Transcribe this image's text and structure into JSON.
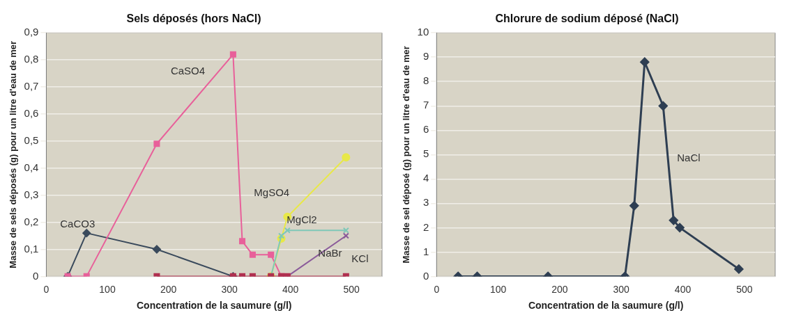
{
  "chart_data": [
    {
      "type": "line",
      "title": "Sels déposés (hors NaCl)",
      "xlabel": "Concentration de la saumure (g/l)",
      "ylabel": "Masse de sels déposés (g) pour un litre d'eau de mer",
      "x": [
        35,
        66,
        181,
        306,
        321,
        338,
        368,
        385,
        395,
        491
      ],
      "series": [
        {
          "name": "CaCO3",
          "color": "#3a4a5c",
          "marker": "diamond",
          "values": [
            0,
            0.16,
            0.1,
            0,
            null,
            null,
            null,
            null,
            null,
            null
          ]
        },
        {
          "name": "CaSO4",
          "color": "#e8609a",
          "marker": "square",
          "values": [
            0,
            0,
            0.49,
            0.82,
            0.13,
            0.08,
            0.08,
            0,
            null,
            null
          ]
        },
        {
          "name": "MgSO4",
          "color": "#e8e848",
          "marker": "circle",
          "values": [
            null,
            null,
            null,
            null,
            null,
            null,
            0,
            0.14,
            0.22,
            0.44
          ]
        },
        {
          "name": "MgCl2",
          "color": "#7fc8b8",
          "marker": "cross",
          "values": [
            null,
            null,
            null,
            null,
            null,
            null,
            0,
            0.15,
            0.17,
            0.17
          ]
        },
        {
          "name": "NaBr",
          "color": "#8a5a9a",
          "marker": "cross",
          "values": [
            null,
            null,
            null,
            null,
            null,
            null,
            null,
            null,
            0,
            0.15
          ]
        },
        {
          "name": "KCl",
          "color": "#b03050",
          "marker": "square",
          "values": [
            null,
            null,
            0,
            0,
            0,
            0,
            0,
            0,
            0,
            0
          ]
        }
      ],
      "xlim": [
        0,
        550
      ],
      "xticks": [
        0,
        100,
        200,
        300,
        400,
        500
      ],
      "ylim": [
        0,
        0.9
      ],
      "yticks": [
        0,
        {
          "value": 0.1,
          "label": "0,1"
        },
        {
          "value": 0.2,
          "label": "0,2"
        },
        {
          "value": 0.3,
          "label": "0,3"
        },
        {
          "value": 0.4,
          "label": "0,4"
        },
        {
          "value": 0.5,
          "label": "0,5"
        },
        {
          "value": 0.6,
          "label": "0,6"
        },
        {
          "value": 0.7,
          "label": "0,7"
        },
        {
          "value": 0.8,
          "label": "0,8"
        },
        {
          "value": 0.9,
          "label": "0,9"
        }
      ],
      "grid": "y"
    },
    {
      "type": "line",
      "title": "Chlorure de sodium déposé (NaCl)",
      "xlabel": "Concentration de la saumure (g/l)",
      "ylabel": "Masse de sel déposé (g) pour un litre d'eau de mer",
      "x": [
        35,
        66,
        181,
        306,
        321,
        338,
        368,
        385,
        395,
        491
      ],
      "series": [
        {
          "name": "NaCl",
          "color": "#2e3e52",
          "marker": "diamond",
          "values": [
            0,
            0,
            0,
            0,
            2.9,
            8.8,
            7,
            2.3,
            2,
            0.3
          ]
        }
      ],
      "xlim": [
        0,
        550
      ],
      "xticks": [
        0,
        100,
        200,
        300,
        400,
        500
      ],
      "ylim": [
        0,
        10
      ],
      "yticks": [
        0,
        1,
        2,
        3,
        4,
        5,
        6,
        7,
        8,
        9,
        10
      ],
      "grid": "y"
    }
  ]
}
